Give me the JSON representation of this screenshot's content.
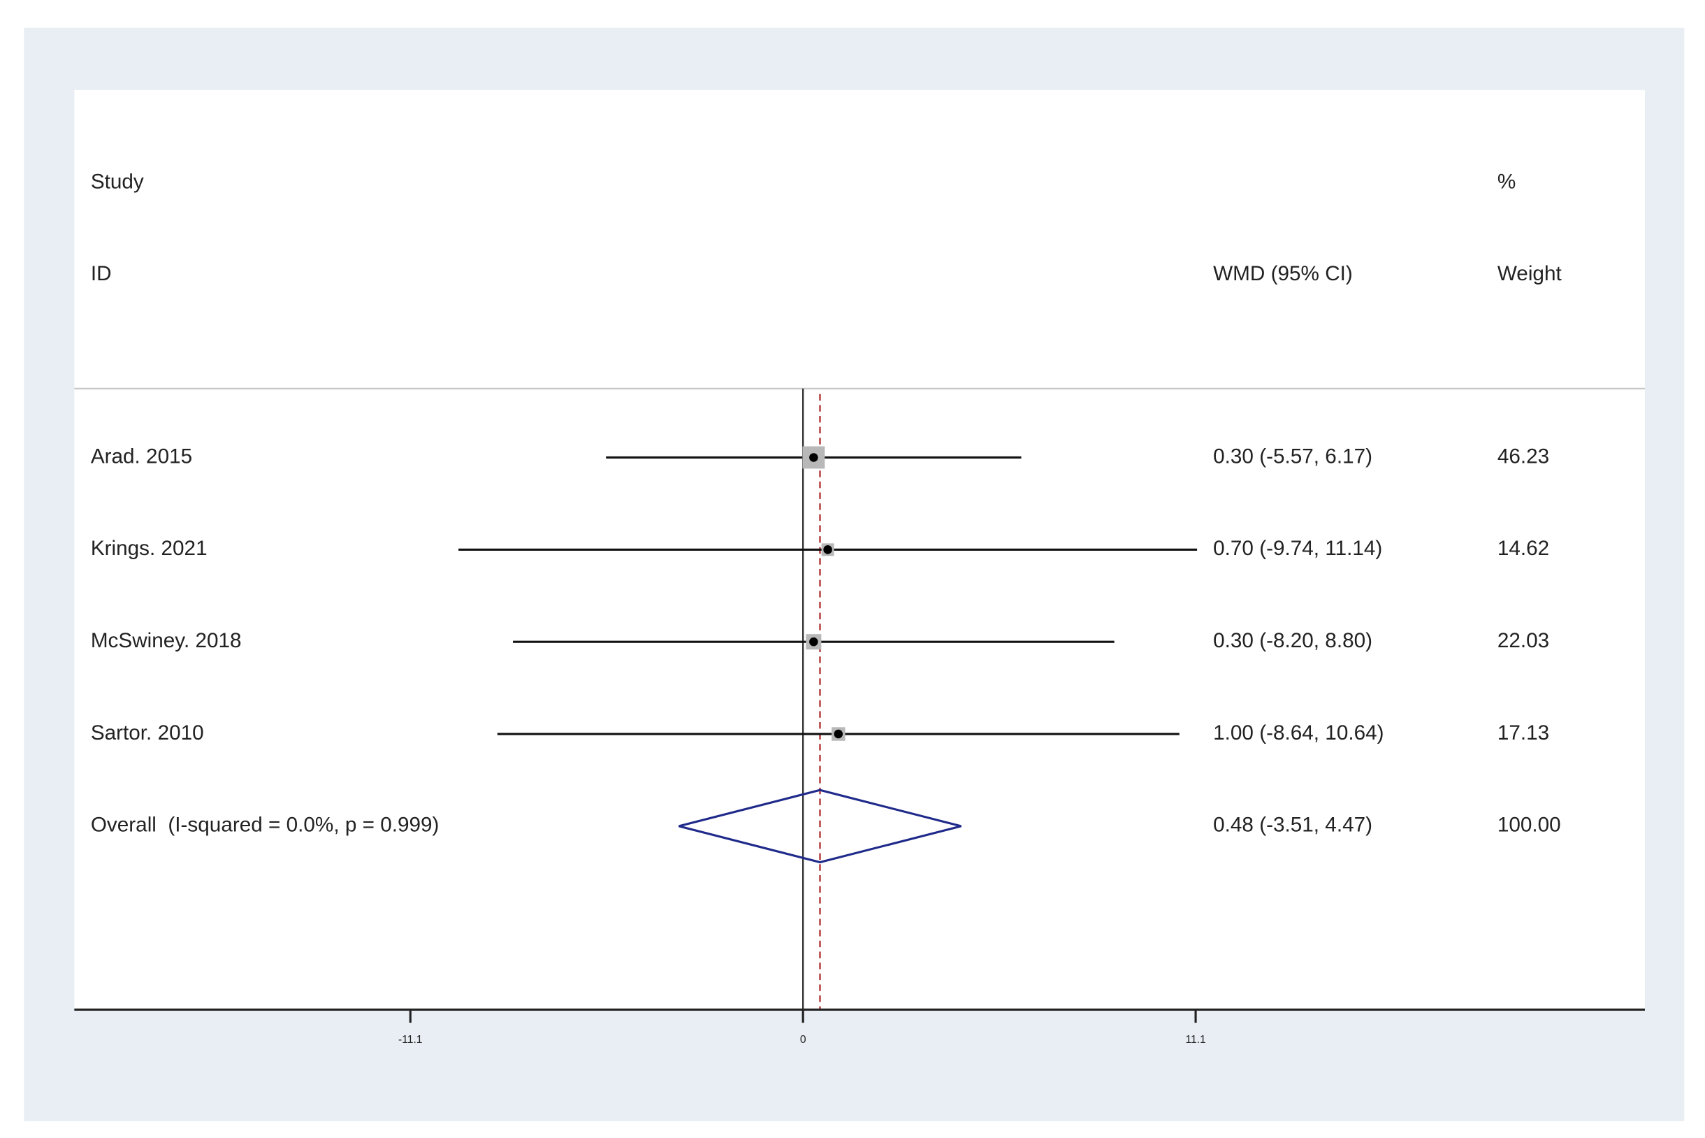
{
  "chart_data": {
    "type": "forest",
    "headers": {
      "study": "Study",
      "id": "ID",
      "ci": "WMD (95% CI)",
      "weight_pct": "%",
      "weight": "Weight"
    },
    "studies": [
      "Arad. 2015",
      "Krings. 2021",
      "McSwiney. 2018",
      "Sartor. 2010"
    ],
    "estimate": [
      0.3,
      0.7,
      0.3,
      1.0
    ],
    "lower": [
      -5.57,
      -9.74,
      -8.2,
      -8.64
    ],
    "upper": [
      6.17,
      11.14,
      8.8,
      10.64
    ],
    "ci_labels": [
      "0.30 (-5.57, 6.17)",
      "0.70 (-9.74, 11.14)",
      "0.30 (-8.20, 8.80)",
      "1.00 (-8.64, 10.64)"
    ],
    "weights": [
      46.23,
      14.62,
      22.03,
      17.13
    ],
    "weight_labels": [
      "46.23",
      "14.62",
      "22.03",
      "17.13"
    ],
    "overall": {
      "label": "Overall  (I-squared = 0.0%, p = 0.999)",
      "estimate": 0.48,
      "lower": -3.51,
      "upper": 4.47,
      "ci_label": "0.48 (-3.51, 4.47)",
      "weight": 100,
      "weight_label": "100.00"
    },
    "xlim": [
      -20.6,
      23.8
    ],
    "xticks": [
      -11.1,
      0,
      11.1
    ],
    "diamond_color": "#1f2a8a",
    "overall_line_color": "#b03030",
    "square_color": "#b8b8b8"
  }
}
